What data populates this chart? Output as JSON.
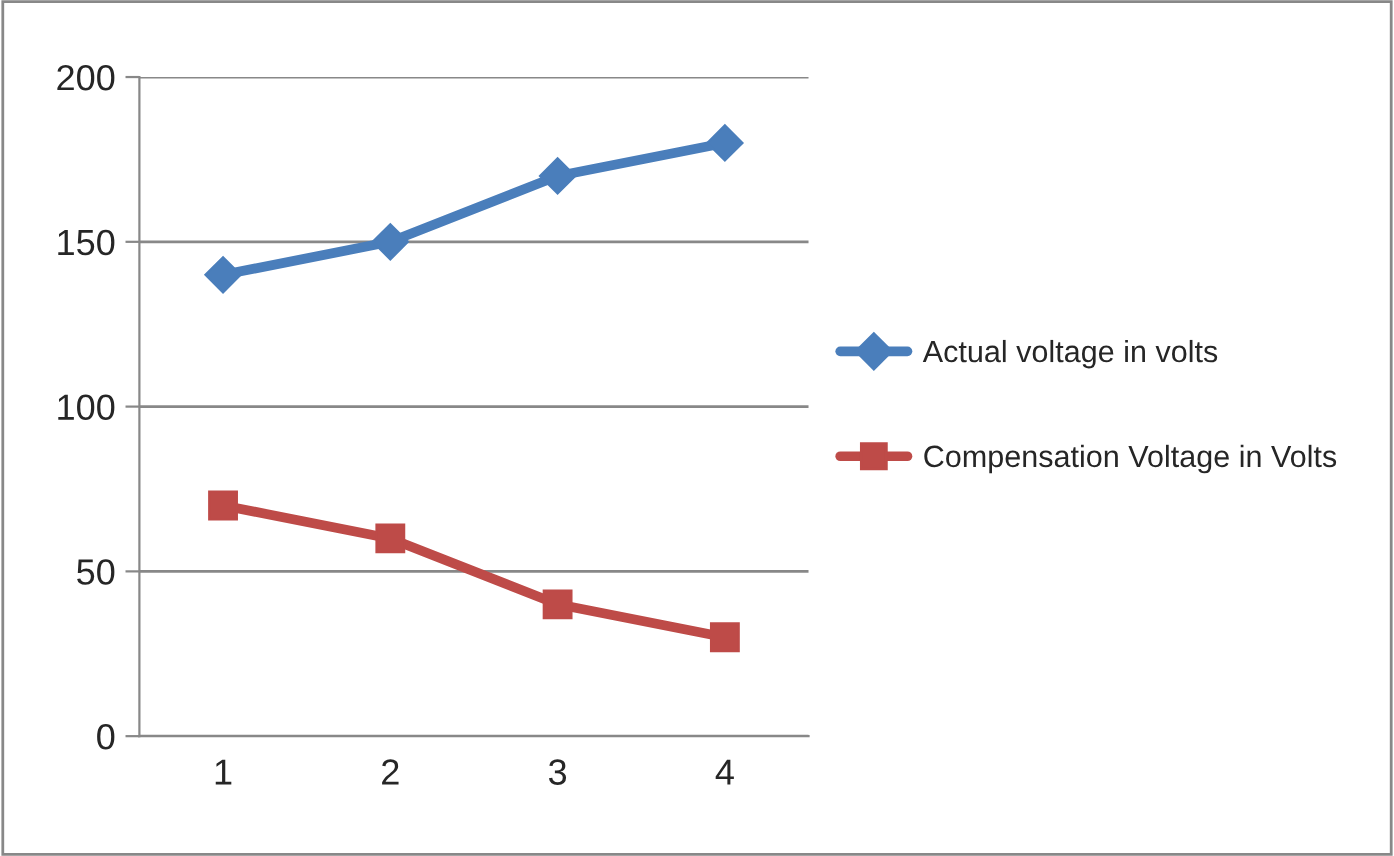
{
  "chart_data": {
    "type": "line",
    "categories": [
      "1",
      "2",
      "3",
      "4"
    ],
    "series": [
      {
        "name": "Actual voltage in volts",
        "color": "#4a7ebb",
        "marker": "diamond",
        "values": [
          140,
          150,
          170,
          180
        ]
      },
      {
        "name": "Compensation Voltage in Volts",
        "color": "#be4b48",
        "marker": "square",
        "values": [
          70,
          60,
          40,
          30
        ]
      }
    ],
    "ylim": [
      0,
      200
    ],
    "yticks": [
      0,
      50,
      100,
      150,
      200
    ],
    "grid": "y",
    "legend": "right",
    "line_style": "solid"
  }
}
